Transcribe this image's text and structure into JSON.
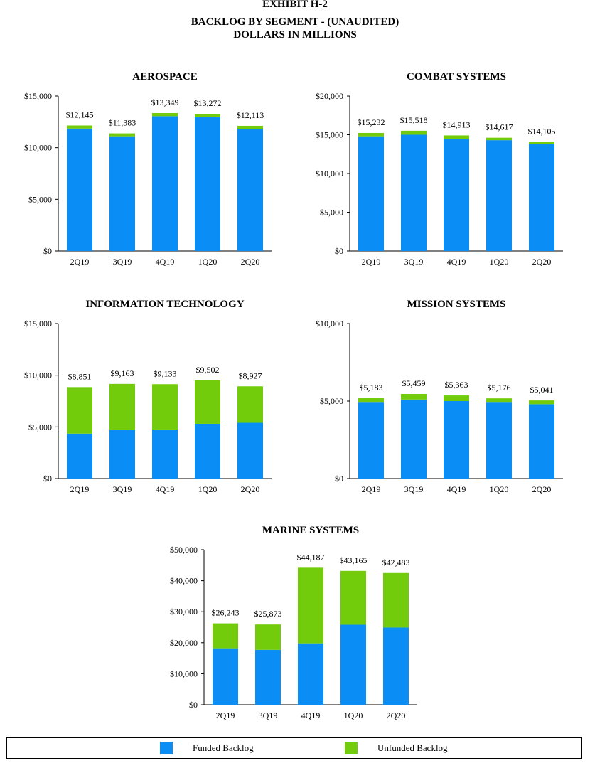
{
  "header": {
    "exhibit": "EXHIBIT H-2",
    "title_line1": "BACKLOG BY SEGMENT - (UNAUDITED)",
    "title_line2": "DOLLARS IN MILLIONS"
  },
  "colors": {
    "funded": "#0a8ef5",
    "unfunded": "#72cc0b"
  },
  "legend": {
    "funded": "Funded Backlog",
    "unfunded": "Unfunded Backlog"
  },
  "chart_data": [
    {
      "type": "bar",
      "stacked": true,
      "title": "AEROSPACE",
      "categories": [
        "2Q19",
        "3Q19",
        "4Q19",
        "1Q20",
        "2Q20"
      ],
      "series": [
        {
          "name": "Funded Backlog",
          "values": [
            11850,
            11100,
            13050,
            12950,
            11800
          ]
        },
        {
          "name": "Unfunded Backlog",
          "values": [
            295,
            283,
            299,
            322,
            313
          ]
        }
      ],
      "total_labels": [
        "$12,145",
        "$11,383",
        "$13,349",
        "$13,272",
        "$12,113"
      ],
      "ylim": [
        0,
        15000
      ],
      "yticks": [
        "$0",
        "$5,000",
        "$10,000",
        "$15,000"
      ]
    },
    {
      "type": "bar",
      "stacked": true,
      "title": "COMBAT SYSTEMS",
      "categories": [
        "2Q19",
        "3Q19",
        "4Q19",
        "1Q20",
        "2Q20"
      ],
      "series": [
        {
          "name": "Funded Backlog",
          "values": [
            14800,
            15000,
            14450,
            14300,
            13800
          ]
        },
        {
          "name": "Unfunded Backlog",
          "values": [
            432,
            518,
            463,
            317,
            305
          ]
        }
      ],
      "total_labels": [
        "$15,232",
        "$15,518",
        "$14,913",
        "$14,617",
        "$14,105"
      ],
      "ylim": [
        0,
        20000
      ],
      "yticks": [
        "$0",
        "$5,000",
        "$10,000",
        "$15,000",
        "$20,000"
      ]
    },
    {
      "type": "bar",
      "stacked": true,
      "title": "INFORMATION TECHNOLOGY",
      "categories": [
        "2Q19",
        "3Q19",
        "4Q19",
        "1Q20",
        "2Q20"
      ],
      "series": [
        {
          "name": "Funded Backlog",
          "values": [
            4350,
            4700,
            4750,
            5300,
            5400
          ]
        },
        {
          "name": "Unfunded Backlog",
          "values": [
            4501,
            4463,
            4383,
            4202,
            3527
          ]
        }
      ],
      "total_labels": [
        "$8,851",
        "$9,163",
        "$9,133",
        "$9,502",
        "$8,927"
      ],
      "ylim": [
        0,
        15000
      ],
      "yticks": [
        "$0",
        "$5,000",
        "$10,000",
        "$15,000"
      ]
    },
    {
      "type": "bar",
      "stacked": true,
      "title": "MISSION SYSTEMS",
      "categories": [
        "2Q19",
        "3Q19",
        "4Q19",
        "1Q20",
        "2Q20"
      ],
      "series": [
        {
          "name": "Funded Backlog",
          "values": [
            4900,
            5100,
            5000,
            4900,
            4800
          ]
        },
        {
          "name": "Unfunded Backlog",
          "values": [
            283,
            359,
            363,
            276,
            241
          ]
        }
      ],
      "total_labels": [
        "$5,183",
        "$5,459",
        "$5,363",
        "$5,176",
        "$5,041"
      ],
      "ylim": [
        0,
        10000
      ],
      "yticks": [
        "$0",
        "$5,000",
        "$10,000"
      ]
    },
    {
      "type": "bar",
      "stacked": true,
      "title": "MARINE SYSTEMS",
      "categories": [
        "2Q19",
        "3Q19",
        "4Q19",
        "1Q20",
        "2Q20"
      ],
      "series": [
        {
          "name": "Funded Backlog",
          "values": [
            18200,
            17700,
            19800,
            25800,
            24900
          ]
        },
        {
          "name": "Unfunded Backlog",
          "values": [
            8043,
            8173,
            24387,
            17365,
            17583
          ]
        }
      ],
      "total_labels": [
        "$26,243",
        "$25,873",
        "$44,187",
        "$43,165",
        "$42,483"
      ],
      "ylim": [
        0,
        50000
      ],
      "yticks": [
        "$0",
        "$10,000",
        "$20,000",
        "$30,000",
        "$40,000",
        "$50,000"
      ]
    }
  ]
}
